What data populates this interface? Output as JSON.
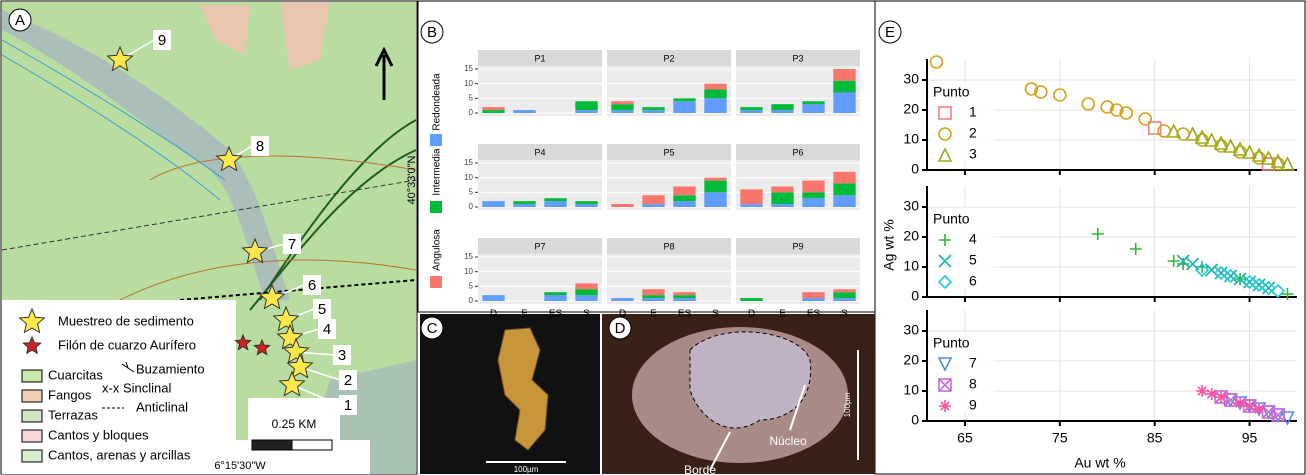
{
  "panels": {
    "a": "A",
    "b": "B",
    "c": "C",
    "d": "D",
    "e": "E"
  },
  "map": {
    "sites": [
      "9",
      "8",
      "7",
      "6",
      "5",
      "4",
      "3",
      "2",
      "1"
    ],
    "latitude": "40°33'0\"N",
    "longitude": "6°15'30\"W",
    "scale": "0.25 KM",
    "legend": {
      "sample": "Muestreo de sedimento",
      "vein": "Filón de cuarzo Aurífero",
      "units": [
        "Cuarcitas",
        "Fangos",
        "Terrazas",
        "Cantos y bloques",
        "Cantos, arenas y arcillas"
      ],
      "structures": [
        "Buzamiento",
        "x-x Sinclinal",
        "Anticlinal"
      ]
    }
  },
  "photos": {
    "c_scale": "100µm",
    "d_scale": "100µm",
    "core": "Núcleo",
    "rim": "Borde"
  },
  "chart_data": [
    {
      "type": "bar",
      "stacked": true,
      "categories": [
        "D",
        "E",
        "ES",
        "S"
      ],
      "ylim": [
        0,
        15
      ],
      "yticks": [
        0,
        5,
        10,
        15
      ],
      "grid": true,
      "legend": "left",
      "series": [
        {
          "name": "Redondeada",
          "color": "#619cff"
        },
        {
          "name": "Intermedia",
          "color": "#00ba38"
        },
        {
          "name": "Angulosa",
          "color": "#f8766d"
        }
      ],
      "facets": [
        {
          "title": "P1",
          "values": [
            [
              0,
              1,
              0,
              1
            ],
            [
              1,
              0,
              0,
              3
            ],
            [
              1,
              0,
              0,
              0
            ]
          ]
        },
        {
          "title": "P2",
          "values": [
            [
              1,
              1,
              4,
              5
            ],
            [
              2,
              1,
              1,
              3
            ],
            [
              1,
              0,
              0,
              2
            ]
          ]
        },
        {
          "title": "P3",
          "values": [
            [
              1,
              1,
              3,
              7
            ],
            [
              1,
              2,
              1,
              4
            ],
            [
              0,
              0,
              0,
              4
            ]
          ]
        },
        {
          "title": "P4",
          "values": [
            [
              2,
              1,
              2,
              1
            ],
            [
              0,
              1,
              1,
              1
            ],
            [
              0,
              0,
              0,
              0
            ]
          ]
        },
        {
          "title": "P5",
          "values": [
            [
              0,
              1,
              2,
              5
            ],
            [
              0,
              0,
              2,
              4
            ],
            [
              1,
              3,
              3,
              1
            ]
          ]
        },
        {
          "title": "P6",
          "values": [
            [
              1,
              1,
              3,
              4
            ],
            [
              0,
              4,
              2,
              4
            ],
            [
              5,
              2,
              4,
              4
            ]
          ]
        },
        {
          "title": "P7",
          "values": [
            [
              2,
              0,
              2,
              2
            ],
            [
              0,
              0,
              1,
              2
            ],
            [
              0,
              0,
              0,
              2
            ]
          ]
        },
        {
          "title": "P8",
          "values": [
            [
              1,
              1,
              1,
              0
            ],
            [
              0,
              1,
              1,
              0
            ],
            [
              0,
              2,
              1,
              0
            ]
          ]
        },
        {
          "title": "P9",
          "values": [
            [
              0,
              0,
              1,
              1
            ],
            [
              1,
              0,
              0,
              2
            ],
            [
              0,
              0,
              2,
              1
            ]
          ]
        }
      ]
    },
    {
      "type": "scatter",
      "xlabel": "Au wt %",
      "ylabel": "Ag wt %",
      "xlim": [
        61,
        100
      ],
      "ylim": [
        0,
        37
      ],
      "xticks": [
        65,
        75,
        85,
        95
      ],
      "yticks": [
        0,
        10,
        20,
        30
      ],
      "grid": true,
      "facets": [
        {
          "legend_title": "Punto",
          "series": [
            {
              "name": "1",
              "color": "#f08080",
              "marker": "square",
              "x": [
                85,
                97
              ],
              "values": [
                14,
                2
              ]
            },
            {
              "name": "2",
              "color": "#d4a017",
              "marker": "circle",
              "x": [
                62,
                72,
                73,
                75,
                78,
                80,
                81,
                82,
                84,
                86,
                88,
                90,
                92,
                94,
                96,
                98
              ],
              "values": [
                36,
                27,
                26,
                25,
                22,
                21,
                20,
                19,
                17,
                13,
                12,
                10,
                8,
                6,
                4,
                2
              ]
            },
            {
              "name": "3",
              "color": "#9aac1c",
              "marker": "triangle",
              "x": [
                87,
                89,
                90,
                91,
                92,
                93,
                94,
                95,
                96,
                97,
                98,
                99
              ],
              "values": [
                13,
                12,
                11,
                10,
                9,
                8,
                7,
                6,
                5,
                4,
                3,
                2
              ]
            }
          ]
        },
        {
          "legend_title": "Punto",
          "series": [
            {
              "name": "4",
              "color": "#2eb82e",
              "marker": "plus",
              "x": [
                79,
                83,
                87,
                88,
                90,
                94,
                99
              ],
              "values": [
                21,
                16,
                12,
                11,
                10,
                6,
                1
              ]
            },
            {
              "name": "5",
              "color": "#20b2aa",
              "marker": "cross",
              "x": [
                88,
                89,
                91,
                92,
                93,
                94,
                95,
                96,
                97
              ],
              "values": [
                12,
                11,
                9,
                8,
                7,
                6,
                5,
                4,
                3
              ]
            },
            {
              "name": "6",
              "color": "#1ec8e0",
              "marker": "diamond",
              "x": [
                90,
                92,
                93,
                95,
                96,
                97,
                98
              ],
              "values": [
                9,
                8,
                7,
                5,
                4,
                3,
                2
              ]
            }
          ]
        },
        {
          "legend_title": "Punto",
          "series": [
            {
              "name": "7",
              "color": "#4a90e2",
              "marker": "triangle-down",
              "x": [
                93,
                94,
                95,
                96,
                97,
                98,
                99
              ],
              "values": [
                7,
                6,
                5,
                4,
                3,
                2,
                1
              ]
            },
            {
              "name": "8",
              "color": "#c86ad8",
              "marker": "boxcross",
              "x": [
                92,
                93,
                95,
                97,
                98
              ],
              "values": [
                8,
                7,
                5,
                3,
                2
              ]
            },
            {
              "name": "9",
              "color": "#ff4fa3",
              "marker": "asterisk",
              "x": [
                90,
                91,
                92,
                94,
                95,
                96
              ],
              "values": [
                10,
                9,
                8,
                6,
                5,
                4
              ]
            }
          ]
        }
      ]
    }
  ]
}
